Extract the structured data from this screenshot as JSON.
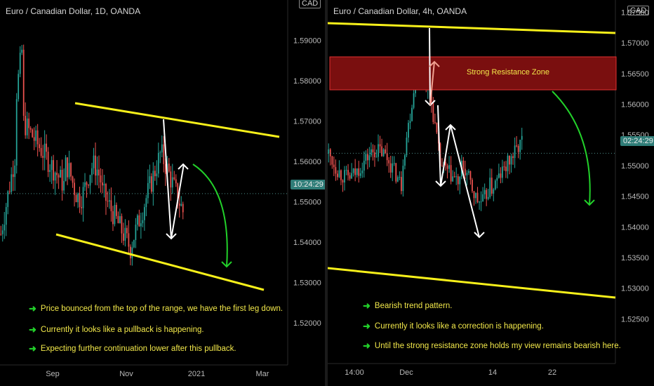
{
  "left": {
    "title": "Euro / Canadian Dollar, 1D, OANDA",
    "currency": "CAD",
    "price_tag": "10:24:29",
    "notes": [
      "Price bounced from the top of the range, we have the first leg down.",
      "Currently it looks like a pullback is happening.",
      "Expecting further continuation lower after this pullback."
    ],
    "note_icon": "right-arrow-icon"
  },
  "right": {
    "title": "Euro / Canadian Dollar, 4h, OANDA",
    "currency": "CAD",
    "price_tag": "02:24:29",
    "zone_label": "Strong Resistance Zone",
    "notes": [
      "Bearish trend pattern.",
      "Currently it looks like a correction is happening.",
      "Until the strong resistance zone holds my view remains bearish here."
    ],
    "note_icon": "right-arrow-icon"
  },
  "colors": {
    "up": "#26a69a",
    "down": "#ef5350",
    "trendline": "#f7f01a",
    "zone_fill": "#7a0f0f",
    "zone_border": "#e03030",
    "projection": "#22d12a",
    "path": "#ffffff",
    "last_price": "#2f7d78"
  },
  "chart_data": [
    {
      "type": "candlestick",
      "symbol": "EURCAD",
      "timeframe": "1D",
      "ylim": [
        1.513,
        1.6
      ],
      "y_ticks": [
        "1.59000",
        "1.58000",
        "1.57000",
        "1.56000",
        "1.55000",
        "1.54000",
        "1.53000",
        "1.52000"
      ],
      "x_ticks": [
        "Sep",
        "Nov",
        "2021",
        "Mar"
      ],
      "last_price": 1.552,
      "ohlc_summary": {
        "high": 1.596,
        "low": 1.533
      },
      "trendlines": [
        {
          "label": "upper",
          "from": 1.569,
          "to": 1.565
        },
        {
          "label": "lower",
          "from": 1.542,
          "to": 1.528
        }
      ],
      "path_points": [
        1.57,
        1.541,
        1.559
      ],
      "projection": {
        "from": 1.559,
        "to": 1.535
      }
    },
    {
      "type": "candlestick",
      "symbol": "EURCAD",
      "timeframe": "4h",
      "ylim": [
        1.52,
        1.577
      ],
      "y_ticks": [
        "1.57500",
        "1.57000",
        "1.56500",
        "1.56000",
        "1.55500",
        "1.55000",
        "1.54500",
        "1.54000",
        "1.53500",
        "1.53000",
        "1.52500"
      ],
      "x_ticks": [
        "14:00",
        "Dec",
        "14",
        "22"
      ],
      "last_price": 1.552,
      "ohlc_summary": {
        "high": 1.5715,
        "low": 1.542
      },
      "resistance_zone": [
        1.562,
        1.567
      ],
      "trendlines": [
        {
          "label": "upper",
          "from": 1.572,
          "to": 1.5705
        },
        {
          "label": "lower",
          "from": 1.534,
          "to": 1.531
        }
      ],
      "path_points": [
        1.571,
        1.56,
        1.5665,
        1.549,
        1.556,
        1.54
      ],
      "projection": {
        "from": 1.562,
        "to": 1.544
      }
    }
  ]
}
